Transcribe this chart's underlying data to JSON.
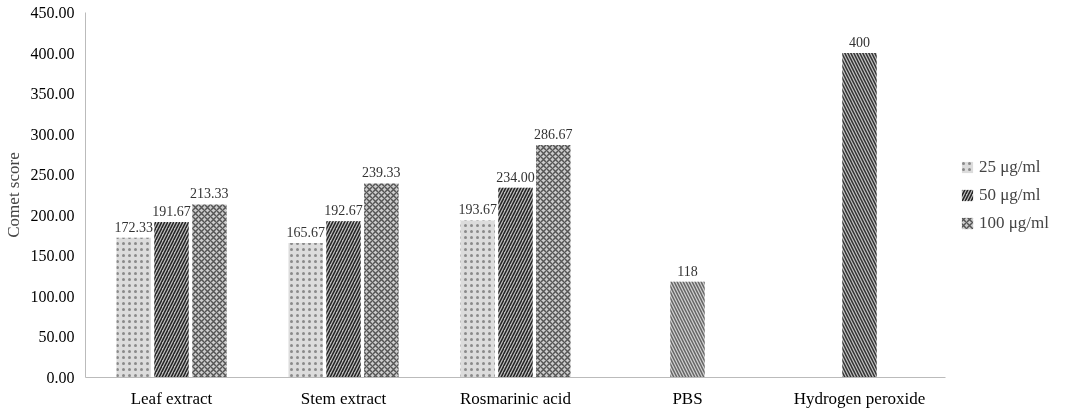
{
  "chart_data": {
    "type": "bar",
    "ylabel": "Comet score",
    "categories": [
      "Leaf extract",
      "Stem extract",
      "Rosmarinic acid",
      "PBS",
      "Hydrogen peroxide"
    ],
    "series": [
      {
        "name": "25 μg/ml",
        "color": "#8a8a8a",
        "values": [
          172.33,
          165.67,
          193.67,
          null,
          null
        ],
        "value_labels": [
          "172.33",
          "165.67",
          "193.67",
          null,
          null
        ]
      },
      {
        "name": "50 μg/ml",
        "color": "#222222",
        "values": [
          191.67,
          192.67,
          234.0,
          null,
          null
        ],
        "value_labels": [
          "191.67",
          "192.67",
          "234.00",
          null,
          null
        ]
      },
      {
        "name": "100 μg/ml",
        "color": "#555555",
        "values": [
          213.33,
          239.33,
          286.67,
          null,
          null
        ],
        "value_labels": [
          "213.33",
          "239.33",
          "286.67",
          null,
          null
        ]
      },
      {
        "color": "#666666",
        "values": [
          null,
          null,
          null,
          118,
          null
        ],
        "value_labels": [
          null,
          null,
          null,
          "118",
          null
        ]
      },
      {
        "color": "#333333",
        "values": [
          null,
          null,
          null,
          null,
          400
        ],
        "value_labels": [
          null,
          null,
          null,
          null,
          "400"
        ]
      }
    ],
    "ylim": [
      0,
      450
    ],
    "yticks": [
      {
        "value": 0,
        "label": "0.00"
      },
      {
        "value": 50,
        "label": "50.00"
      },
      {
        "value": 100,
        "label": "100.00"
      },
      {
        "value": 150,
        "label": "150.00"
      },
      {
        "value": 200,
        "label": "200.00"
      },
      {
        "value": 250,
        "label": "250.00"
      },
      {
        "value": 300,
        "label": "300.00"
      },
      {
        "value": 350,
        "label": "350.00"
      },
      {
        "value": 400,
        "label": "400.00"
      },
      {
        "value": 450,
        "label": "450.00"
      }
    ],
    "grid": false,
    "legend": "right"
  }
}
